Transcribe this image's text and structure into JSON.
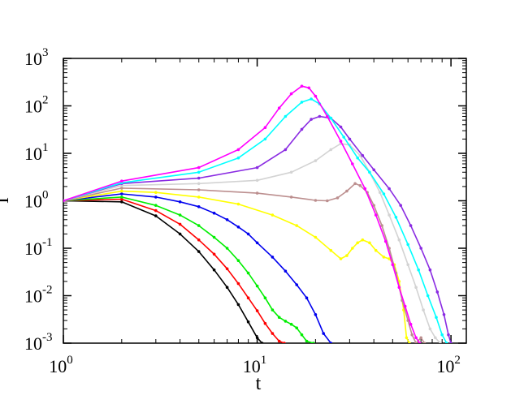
{
  "chart_data": {
    "type": "line",
    "title": "",
    "xlabel": "t",
    "ylabel": "I",
    "xscale": "log",
    "yscale": "log",
    "xlim": [
      1,
      120
    ],
    "ylim": [
      0.001,
      1000
    ],
    "grid": false,
    "legend": "none",
    "x_ticks": [
      {
        "base": "10",
        "exp": "0",
        "value": 1
      },
      {
        "base": "10",
        "exp": "1",
        "value": 10
      },
      {
        "base": "10",
        "exp": "2",
        "value": 100
      }
    ],
    "y_ticks": [
      {
        "base": "10",
        "exp": "-3",
        "value": 0.001
      },
      {
        "base": "10",
        "exp": "-2",
        "value": 0.01
      },
      {
        "base": "10",
        "exp": "-1",
        "value": 0.1
      },
      {
        "base": "10",
        "exp": "0",
        "value": 1
      },
      {
        "base": "10",
        "exp": "1",
        "value": 10
      },
      {
        "base": "10",
        "exp": "2",
        "value": 100
      },
      {
        "base": "10",
        "exp": "3",
        "value": 1000
      }
    ],
    "series": [
      {
        "color": "#000000",
        "points": [
          [
            1,
            1
          ],
          [
            2,
            0.95
          ],
          [
            3,
            0.48
          ],
          [
            4,
            0.2
          ],
          [
            5,
            0.085
          ],
          [
            6,
            0.035
          ],
          [
            7,
            0.015
          ],
          [
            8,
            0.0065
          ],
          [
            9,
            0.0028
          ],
          [
            10,
            0.0013
          ],
          [
            10.6,
            0.001
          ]
        ]
      },
      {
        "color": "#ff0000",
        "points": [
          [
            1,
            1
          ],
          [
            2,
            1.08
          ],
          [
            3,
            0.62
          ],
          [
            4,
            0.32
          ],
          [
            5,
            0.15
          ],
          [
            6,
            0.075
          ],
          [
            7,
            0.037
          ],
          [
            8,
            0.018
          ],
          [
            9,
            0.009
          ],
          [
            10,
            0.0048
          ],
          [
            11,
            0.0026
          ],
          [
            12,
            0.0016
          ],
          [
            13,
            0.0011
          ],
          [
            13.8,
            0.001
          ]
        ]
      },
      {
        "color": "#00ee00",
        "points": [
          [
            1,
            1
          ],
          [
            2,
            1.2
          ],
          [
            3,
            0.8
          ],
          [
            4,
            0.5
          ],
          [
            5,
            0.3
          ],
          [
            6,
            0.17
          ],
          [
            7,
            0.1
          ],
          [
            8,
            0.055
          ],
          [
            9,
            0.03
          ],
          [
            10,
            0.016
          ],
          [
            11,
            0.009
          ],
          [
            12,
            0.005
          ],
          [
            13,
            0.0035
          ],
          [
            14,
            0.0029
          ],
          [
            15,
            0.0025
          ],
          [
            16,
            0.0021
          ],
          [
            17,
            0.0015
          ],
          [
            18,
            0.0011
          ],
          [
            19.5,
            0.001
          ]
        ]
      },
      {
        "color": "#0000ee",
        "points": [
          [
            1,
            1
          ],
          [
            2,
            1.4
          ],
          [
            3,
            1.2
          ],
          [
            4,
            0.95
          ],
          [
            5,
            0.75
          ],
          [
            6,
            0.55
          ],
          [
            7,
            0.4
          ],
          [
            8,
            0.28
          ],
          [
            9,
            0.2
          ],
          [
            10,
            0.13
          ],
          [
            12,
            0.065
          ],
          [
            14,
            0.033
          ],
          [
            16,
            0.017
          ],
          [
            18,
            0.009
          ],
          [
            20,
            0.004
          ],
          [
            22,
            0.0016
          ],
          [
            24,
            0.001
          ]
        ]
      },
      {
        "color": "#ffff00",
        "points": [
          [
            1,
            1
          ],
          [
            2,
            1.6
          ],
          [
            3,
            1.5
          ],
          [
            5,
            1.2
          ],
          [
            8,
            0.85
          ],
          [
            12,
            0.5
          ],
          [
            16,
            0.3
          ],
          [
            20,
            0.17
          ],
          [
            24,
            0.09
          ],
          [
            27,
            0.06
          ],
          [
            29,
            0.07
          ],
          [
            31,
            0.1
          ],
          [
            33,
            0.13
          ],
          [
            35,
            0.15
          ],
          [
            38,
            0.13
          ],
          [
            41,
            0.09
          ],
          [
            45,
            0.065
          ],
          [
            48,
            0.06
          ],
          [
            51,
            0.045
          ],
          [
            54,
            0.02
          ],
          [
            57,
            0.005
          ],
          [
            59,
            0.0013
          ],
          [
            61,
            0.001
          ]
        ]
      },
      {
        "color": "#bc8f8f",
        "points": [
          [
            1,
            1
          ],
          [
            2,
            1.85
          ],
          [
            5,
            1.7
          ],
          [
            10,
            1.45
          ],
          [
            15,
            1.2
          ],
          [
            20,
            1.02
          ],
          [
            23,
            1.0
          ],
          [
            26,
            1.15
          ],
          [
            29,
            1.6
          ],
          [
            32,
            2.3
          ],
          [
            34,
            2.1
          ],
          [
            37,
            1.5
          ],
          [
            40,
            0.8
          ],
          [
            44,
            0.3
          ],
          [
            48,
            0.1
          ],
          [
            52,
            0.03
          ],
          [
            56,
            0.008
          ],
          [
            60,
            0.003
          ],
          [
            63,
            0.0015
          ],
          [
            66,
            0.001
          ],
          [
            70,
            0.0013
          ],
          [
            73,
            0.001
          ]
        ]
      },
      {
        "color": "#d3d3d3",
        "points": [
          [
            1,
            1
          ],
          [
            2,
            2.1
          ],
          [
            5,
            2.3
          ],
          [
            10,
            2.7
          ],
          [
            15,
            4
          ],
          [
            20,
            7
          ],
          [
            24,
            12
          ],
          [
            27,
            16
          ],
          [
            30,
            15
          ],
          [
            34,
            9
          ],
          [
            38,
            4
          ],
          [
            43,
            1.5
          ],
          [
            48,
            0.5
          ],
          [
            54,
            0.15
          ],
          [
            60,
            0.045
          ],
          [
            66,
            0.015
          ],
          [
            72,
            0.005
          ],
          [
            78,
            0.002
          ],
          [
            83,
            0.0013
          ],
          [
            88,
            0.001
          ]
        ]
      },
      {
        "color": "#8a2be2",
        "points": [
          [
            1,
            1
          ],
          [
            2,
            2.3
          ],
          [
            5,
            3
          ],
          [
            10,
            5
          ],
          [
            14,
            12
          ],
          [
            17,
            32
          ],
          [
            19,
            52
          ],
          [
            21,
            60
          ],
          [
            24,
            55
          ],
          [
            27,
            36
          ],
          [
            30,
            20
          ],
          [
            35,
            9
          ],
          [
            40,
            4.5
          ],
          [
            48,
            1.8
          ],
          [
            55,
            0.8
          ],
          [
            62,
            0.3
          ],
          [
            70,
            0.1
          ],
          [
            78,
            0.035
          ],
          [
            85,
            0.012
          ],
          [
            92,
            0.004
          ],
          [
            97,
            0.0015
          ],
          [
            100,
            0.001
          ]
        ]
      },
      {
        "color": "#00ffff",
        "points": [
          [
            1,
            1
          ],
          [
            2,
            2.4
          ],
          [
            5,
            4
          ],
          [
            8,
            8
          ],
          [
            11,
            20
          ],
          [
            14,
            60
          ],
          [
            17,
            120
          ],
          [
            19,
            140
          ],
          [
            21,
            110
          ],
          [
            24,
            55
          ],
          [
            28,
            22
          ],
          [
            33,
            8
          ],
          [
            38,
            4
          ],
          [
            45,
            1.4
          ],
          [
            52,
            0.45
          ],
          [
            60,
            0.12
          ],
          [
            68,
            0.035
          ],
          [
            76,
            0.01
          ],
          [
            84,
            0.0035
          ],
          [
            90,
            0.0015
          ],
          [
            95,
            0.001
          ]
        ]
      },
      {
        "color": "#ff00ff",
        "points": [
          [
            1,
            1
          ],
          [
            2,
            2.6
          ],
          [
            5,
            5
          ],
          [
            8,
            12
          ],
          [
            11,
            35
          ],
          [
            13,
            90
          ],
          [
            15,
            180
          ],
          [
            17,
            260
          ],
          [
            18.5,
            240
          ],
          [
            20,
            160
          ],
          [
            23,
            60
          ],
          [
            27,
            18
          ],
          [
            31,
            6
          ],
          [
            36,
            1.8
          ],
          [
            41,
            0.5
          ],
          [
            46,
            0.14
          ],
          [
            50,
            0.045
          ],
          [
            54,
            0.015
          ],
          [
            58,
            0.006
          ],
          [
            62,
            0.0025
          ],
          [
            66,
            0.0013
          ],
          [
            69,
            0.001
          ]
        ]
      }
    ]
  }
}
